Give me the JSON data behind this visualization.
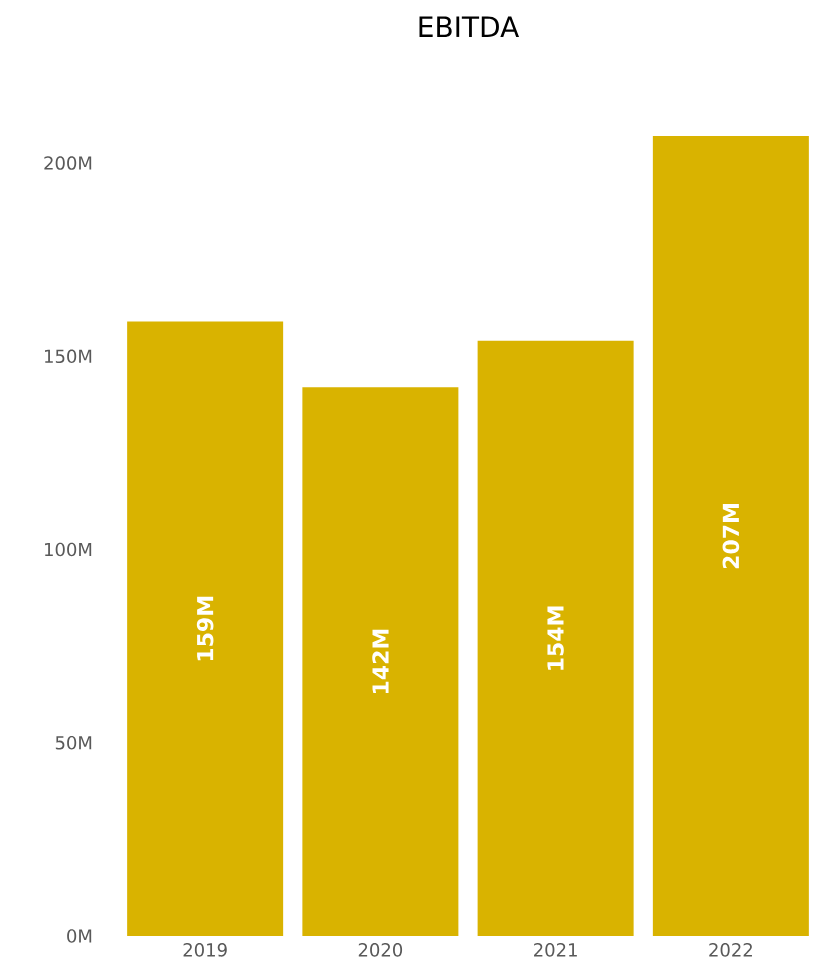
{
  "chart_data": {
    "type": "bar",
    "title": "EBITDA",
    "categories": [
      "2019",
      "2020",
      "2021",
      "2022"
    ],
    "values": [
      159,
      142,
      154,
      207
    ],
    "value_labels": [
      "159M",
      "142M",
      "154M",
      "207M"
    ],
    "color": "#d9b300",
    "ylim": [
      0,
      207
    ],
    "yticks": [
      {
        "value": 0,
        "label": "0M"
      },
      {
        "value": 50,
        "label": "50M"
      },
      {
        "value": 100,
        "label": "100M"
      },
      {
        "value": 150,
        "label": "150M"
      },
      {
        "value": 200,
        "label": "200M"
      }
    ],
    "grid": false
  }
}
